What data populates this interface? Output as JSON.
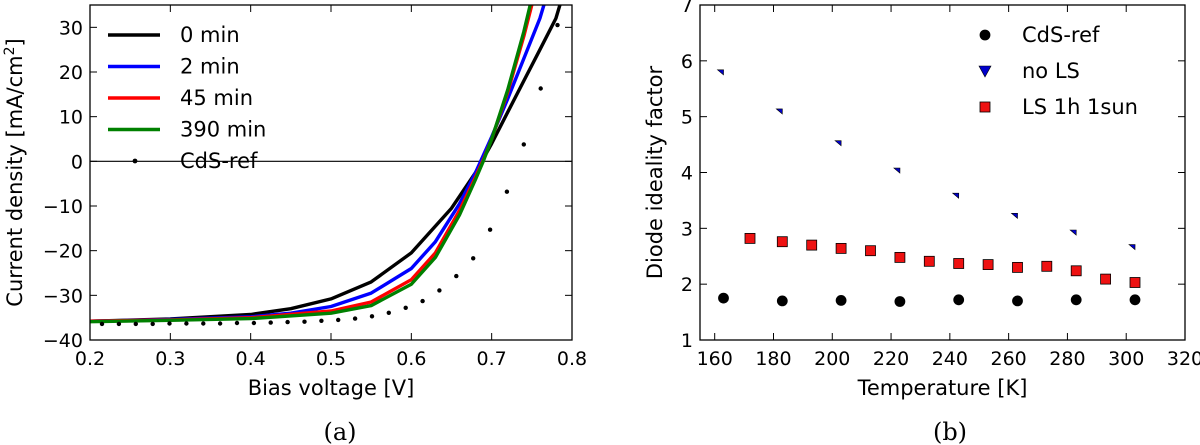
{
  "chart_data": [
    {
      "type": "line",
      "panel_caption": "(a)",
      "xlabel": "Bias voltage [V]",
      "ylabel": "Current density [mA/cm²]",
      "ylabel_parts": {
        "main": "Current density [mA/cm",
        "sup": "2",
        "end": "]"
      },
      "xlim": [
        0.2,
        0.8
      ],
      "ylim": [
        -40,
        35
      ],
      "xticks": [
        "0.2",
        "0.3",
        "0.4",
        "0.5",
        "0.6",
        "0.7",
        "0.8"
      ],
      "yticks": [
        "−40",
        "−30",
        "−20",
        "−10",
        "0",
        "10",
        "20",
        "30"
      ],
      "xtick_values": [
        0.2,
        0.3,
        0.4,
        0.5,
        0.6,
        0.7,
        0.8
      ],
      "ytick_values": [
        -40,
        -30,
        -20,
        -10,
        0,
        10,
        20,
        30
      ],
      "legend_position": "top-left",
      "grid": false,
      "zero_line": true,
      "series": [
        {
          "name": "0 min",
          "color": "#000000",
          "style": "line",
          "points": [
            [
              0.2,
              -35.8
            ],
            [
              0.3,
              -35.3
            ],
            [
              0.4,
              -34.3
            ],
            [
              0.45,
              -33.0
            ],
            [
              0.5,
              -30.8
            ],
            [
              0.55,
              -27.0
            ],
            [
              0.6,
              -20.5
            ],
            [
              0.65,
              -10.5
            ],
            [
              0.68,
              -2.5
            ],
            [
              0.7,
              4.0
            ],
            [
              0.72,
              11.0
            ],
            [
              0.74,
              18.0
            ],
            [
              0.76,
              25.0
            ],
            [
              0.78,
              32.0
            ],
            [
              0.785,
              35.0
            ]
          ]
        },
        {
          "name": "2 min",
          "color": "#0000ff",
          "style": "line",
          "points": [
            [
              0.2,
              -35.8
            ],
            [
              0.3,
              -35.4
            ],
            [
              0.4,
              -34.8
            ],
            [
              0.45,
              -34.0
            ],
            [
              0.5,
              -32.5
            ],
            [
              0.55,
              -29.5
            ],
            [
              0.6,
              -24.0
            ],
            [
              0.63,
              -18.0
            ],
            [
              0.66,
              -9.5
            ],
            [
              0.68,
              -2.5
            ],
            [
              0.7,
              5.5
            ],
            [
              0.72,
              14.0
            ],
            [
              0.74,
              23.0
            ],
            [
              0.76,
              32.0
            ],
            [
              0.765,
              35.0
            ]
          ]
        },
        {
          "name": "45 min",
          "color": "#ff0000",
          "style": "line",
          "points": [
            [
              0.2,
              -35.8
            ],
            [
              0.3,
              -35.5
            ],
            [
              0.4,
              -35.0
            ],
            [
              0.5,
              -33.5
            ],
            [
              0.55,
              -31.5
            ],
            [
              0.6,
              -26.5
            ],
            [
              0.63,
              -20.5
            ],
            [
              0.66,
              -11.0
            ],
            [
              0.68,
              -3.5
            ],
            [
              0.69,
              0.5
            ],
            [
              0.7,
              5.0
            ],
            [
              0.72,
              15.5
            ],
            [
              0.74,
              28.0
            ],
            [
              0.75,
              35.0
            ]
          ]
        },
        {
          "name": "390 min",
          "color": "#008000",
          "style": "line",
          "points": [
            [
              0.2,
              -35.9
            ],
            [
              0.3,
              -35.6
            ],
            [
              0.4,
              -35.2
            ],
            [
              0.5,
              -34.0
            ],
            [
              0.55,
              -32.3
            ],
            [
              0.6,
              -27.5
            ],
            [
              0.63,
              -21.5
            ],
            [
              0.66,
              -12.0
            ],
            [
              0.68,
              -4.0
            ],
            [
              0.69,
              0.2
            ],
            [
              0.7,
              5.0
            ],
            [
              0.72,
              16.0
            ],
            [
              0.74,
              29.0
            ],
            [
              0.748,
              35.0
            ]
          ]
        },
        {
          "name": "CdS-ref",
          "color": "#000000",
          "style": "dots",
          "points": [
            [
              0.215,
              -36.4
            ],
            [
              0.236,
              -36.4
            ],
            [
              0.257,
              -36.4
            ],
            [
              0.278,
              -36.4
            ],
            [
              0.299,
              -36.3
            ],
            [
              0.32,
              -36.3
            ],
            [
              0.341,
              -36.3
            ],
            [
              0.362,
              -36.3
            ],
            [
              0.383,
              -36.2
            ],
            [
              0.404,
              -36.2
            ],
            [
              0.425,
              -36.1
            ],
            [
              0.446,
              -36.0
            ],
            [
              0.467,
              -35.9
            ],
            [
              0.488,
              -35.7
            ],
            [
              0.509,
              -35.5
            ],
            [
              0.53,
              -35.2
            ],
            [
              0.551,
              -34.7
            ],
            [
              0.572,
              -33.9
            ],
            [
              0.593,
              -32.8
            ],
            [
              0.614,
              -31.3
            ],
            [
              0.635,
              -28.9
            ],
            [
              0.656,
              -25.7
            ],
            [
              0.677,
              -21.7
            ],
            [
              0.698,
              -15.3
            ],
            [
              0.719,
              -6.8
            ],
            [
              0.74,
              3.8
            ],
            [
              0.761,
              16.3
            ],
            [
              0.782,
              30.5
            ]
          ]
        }
      ]
    },
    {
      "type": "scatter",
      "panel_caption": "(b)",
      "xlabel": "Temperature [K]",
      "ylabel": "Diode ideality factor",
      "xlim": [
        155,
        320
      ],
      "ylim": [
        1,
        7
      ],
      "xticks": [
        "160",
        "180",
        "200",
        "220",
        "240",
        "260",
        "280",
        "300",
        "320"
      ],
      "yticks": [
        "1",
        "2",
        "3",
        "4",
        "5",
        "6",
        "7"
      ],
      "xtick_values": [
        160,
        180,
        200,
        220,
        240,
        260,
        280,
        300,
        320
      ],
      "ytick_values": [
        1,
        2,
        3,
        4,
        5,
        6,
        7
      ],
      "legend_position": "top-right",
      "grid": false,
      "series": [
        {
          "name": "CdS-ref",
          "color": "#000000",
          "marker": "circle",
          "x": [
            163,
            183,
            203,
            223,
            243,
            263,
            283,
            303
          ],
          "y": [
            1.75,
            1.7,
            1.71,
            1.69,
            1.72,
            1.7,
            1.72,
            1.72
          ]
        },
        {
          "name": "no LS",
          "color": "#0000cc",
          "marker": "triangle-down",
          "x": [
            163,
            183,
            203,
            223,
            243,
            263,
            283,
            303
          ],
          "y": [
            5.75,
            5.05,
            4.48,
            3.99,
            3.54,
            3.18,
            2.88,
            2.62
          ]
        },
        {
          "name": "LS 1h 1sun",
          "color": "#ee1111",
          "marker": "square",
          "x": [
            172,
            183,
            193,
            203,
            213,
            223,
            233,
            243,
            253,
            263,
            273,
            283,
            293,
            303
          ],
          "y": [
            2.82,
            2.76,
            2.7,
            2.64,
            2.6,
            2.48,
            2.41,
            2.37,
            2.35,
            2.3,
            2.32,
            2.24,
            2.09,
            2.03
          ]
        }
      ]
    }
  ]
}
